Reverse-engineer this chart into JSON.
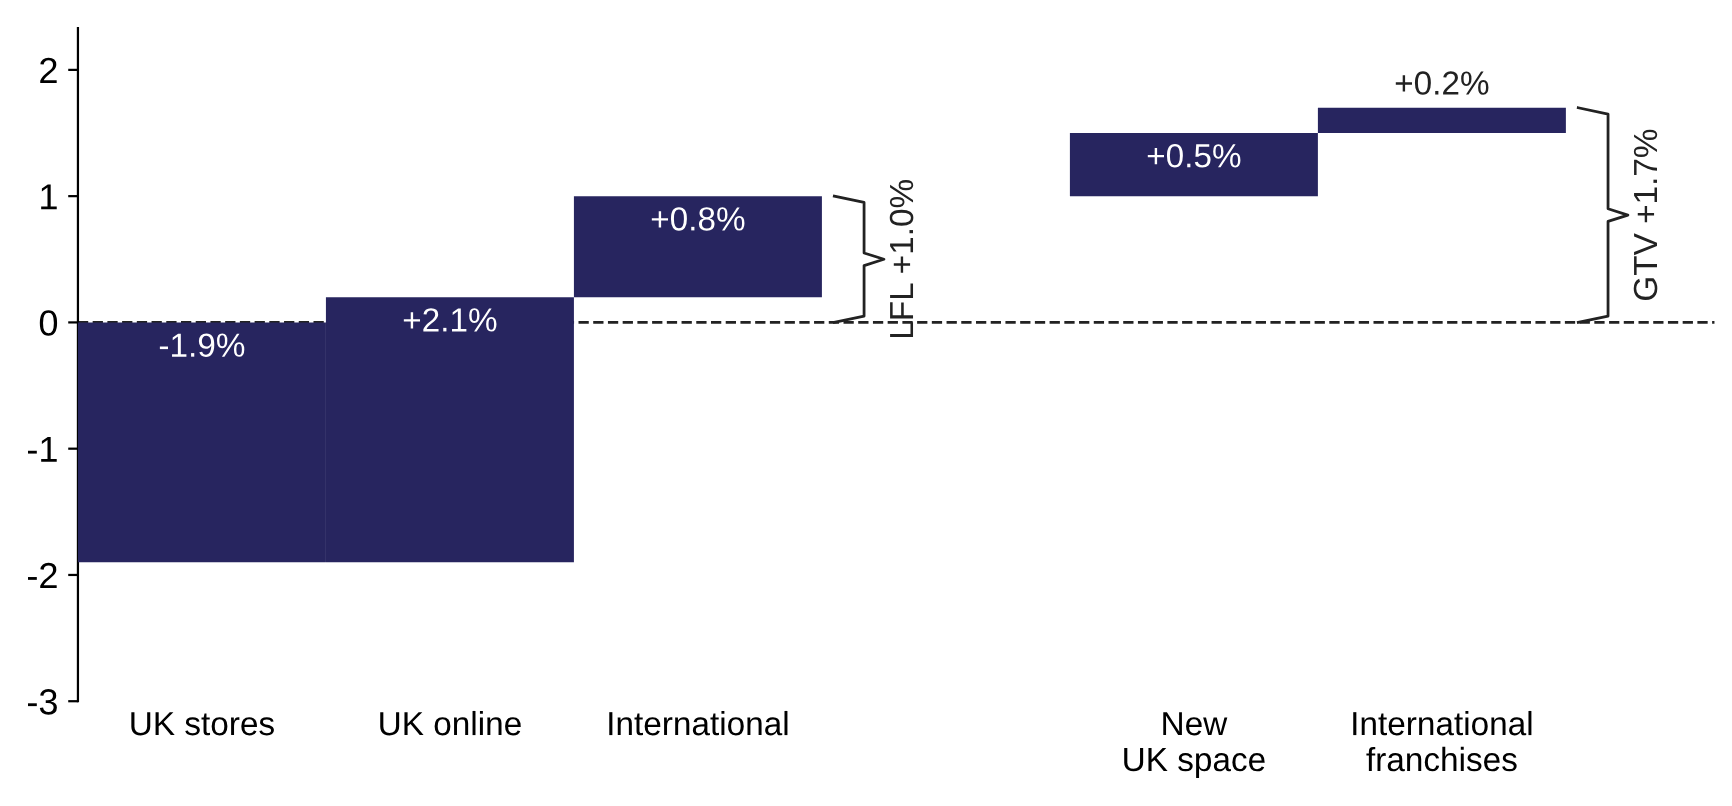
{
  "chart_data": {
    "type": "bar",
    "categories": [
      "UK stores",
      "UK online",
      "International",
      null,
      "New\nUK space",
      "International\nfranchises"
    ],
    "values": [
      -1.9,
      2.1,
      0.8,
      null,
      0.5,
      0.2
    ],
    "base": [
      0,
      -1.9,
      0.2,
      null,
      1.0,
      1.5
    ],
    "value_labels": [
      "-1.9%",
      "+2.1%",
      "+0.8%",
      null,
      "+0.5%",
      "+0.2%"
    ],
    "color": "#27255f",
    "ylim": [
      -3,
      2.33
    ],
    "yticks": [
      -3,
      -2,
      -1,
      0,
      1,
      2
    ],
    "grid": false,
    "legend": false,
    "ref_lines": [
      {
        "axis": "y",
        "value": 0,
        "label": null,
        "line_style": "dashed",
        "color": "#222222"
      }
    ],
    "annotations": [
      "LFL +1.0%",
      "GTV +1.7%"
    ]
  }
}
